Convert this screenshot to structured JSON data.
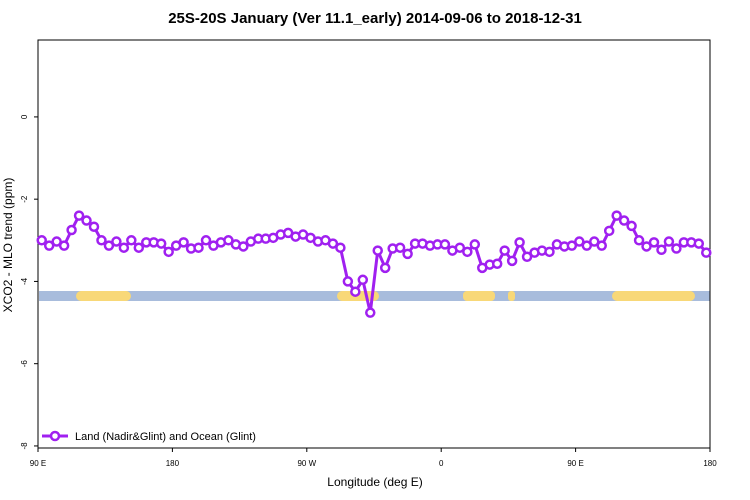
{
  "chart_data": {
    "type": "line",
    "title": "25S-20S January (Ver 11.1_early)   2014-09-06 to 2018-12-31",
    "x_label": "Longitude (deg E)",
    "y_label": "XCO2 - MLO trend (ppm)",
    "x": [
      92.5,
      97.5,
      102.5,
      107.5,
      112.5,
      117.5,
      122.5,
      127.5,
      132.5,
      137.5,
      142.5,
      147.5,
      152.5,
      157.5,
      162.5,
      167.5,
      172.5,
      177.5,
      182.5,
      187.5,
      192.5,
      197.5,
      202.5,
      207.5,
      212.5,
      217.5,
      222.5,
      227.5,
      232.5,
      237.5,
      242.5,
      247.5,
      252.5,
      257.5,
      262.5,
      267.5,
      272.5,
      277.5,
      282.5,
      287.5,
      292.5,
      297.5,
      302.5,
      307.5,
      312.5,
      317.5,
      322.5,
      327.5,
      332.5,
      337.5,
      342.5,
      347.5,
      352.5,
      357.5,
      362.5,
      367.5,
      372.5,
      377.5,
      382.5,
      387.5,
      392.5,
      397.5,
      402.5,
      407.5,
      412.5,
      417.5,
      422.5,
      427.5,
      432.5,
      437.5,
      442.5,
      447.5,
      452.5,
      457.5,
      462.5,
      467.5,
      472.5,
      477.5,
      482.5,
      487.5,
      492.5,
      497.5,
      502.5,
      507.5,
      512.5,
      517.5,
      522.5,
      527.5,
      532.5,
      537.5
    ],
    "series": [
      {
        "name": "Land (Nadir&Glint) and Ocean (Glint)",
        "color": "#a020f0",
        "values": [
          -3.0,
          -3.13,
          -3.03,
          -3.13,
          -2.75,
          -2.4,
          -2.52,
          -2.67,
          -3.0,
          -3.13,
          -3.03,
          -3.18,
          -3.0,
          -3.18,
          -3.05,
          -3.05,
          -3.08,
          -3.28,
          -3.13,
          -3.05,
          -3.2,
          -3.18,
          -3.0,
          -3.13,
          -3.05,
          -3.0,
          -3.1,
          -3.15,
          -3.03,
          -2.96,
          -2.96,
          -2.94,
          -2.86,
          -2.82,
          -2.91,
          -2.86,
          -2.94,
          -3.03,
          -3.0,
          -3.08,
          -3.18,
          -4.0,
          -4.25,
          -3.96,
          -4.76,
          -3.25,
          -3.67,
          -3.2,
          -3.18,
          -3.33,
          -3.08,
          -3.08,
          -3.13,
          -3.1,
          -3.1,
          -3.25,
          -3.18,
          -3.28,
          -3.1,
          -3.67,
          -3.59,
          -3.57,
          -3.25,
          -3.5,
          -3.05,
          -3.4,
          -3.3,
          -3.25,
          -3.28,
          -3.1,
          -3.15,
          -3.13,
          -3.03,
          -3.13,
          -3.03,
          -3.13,
          -2.77,
          -2.4,
          -2.52,
          -2.65,
          -3.0,
          -3.15,
          -3.05,
          -3.23,
          -3.03,
          -3.2,
          -3.05,
          -3.05,
          -3.08,
          -3.3
        ]
      }
    ],
    "xlim": [
      90,
      540
    ],
    "xticks": [
      {
        "value": 90,
        "label": "90 E"
      },
      {
        "value": 180,
        "label": "180"
      },
      {
        "value": 270,
        "label": "90 W"
      },
      {
        "value": 360,
        "label": "0"
      },
      {
        "value": 450,
        "label": "90 E"
      },
      {
        "value": 540,
        "label": "180"
      }
    ],
    "ylim": [
      -8.05,
      1.87
    ],
    "yticks": [
      -8,
      -6,
      -4,
      -2,
      0
    ],
    "legend": "bottom-left"
  }
}
